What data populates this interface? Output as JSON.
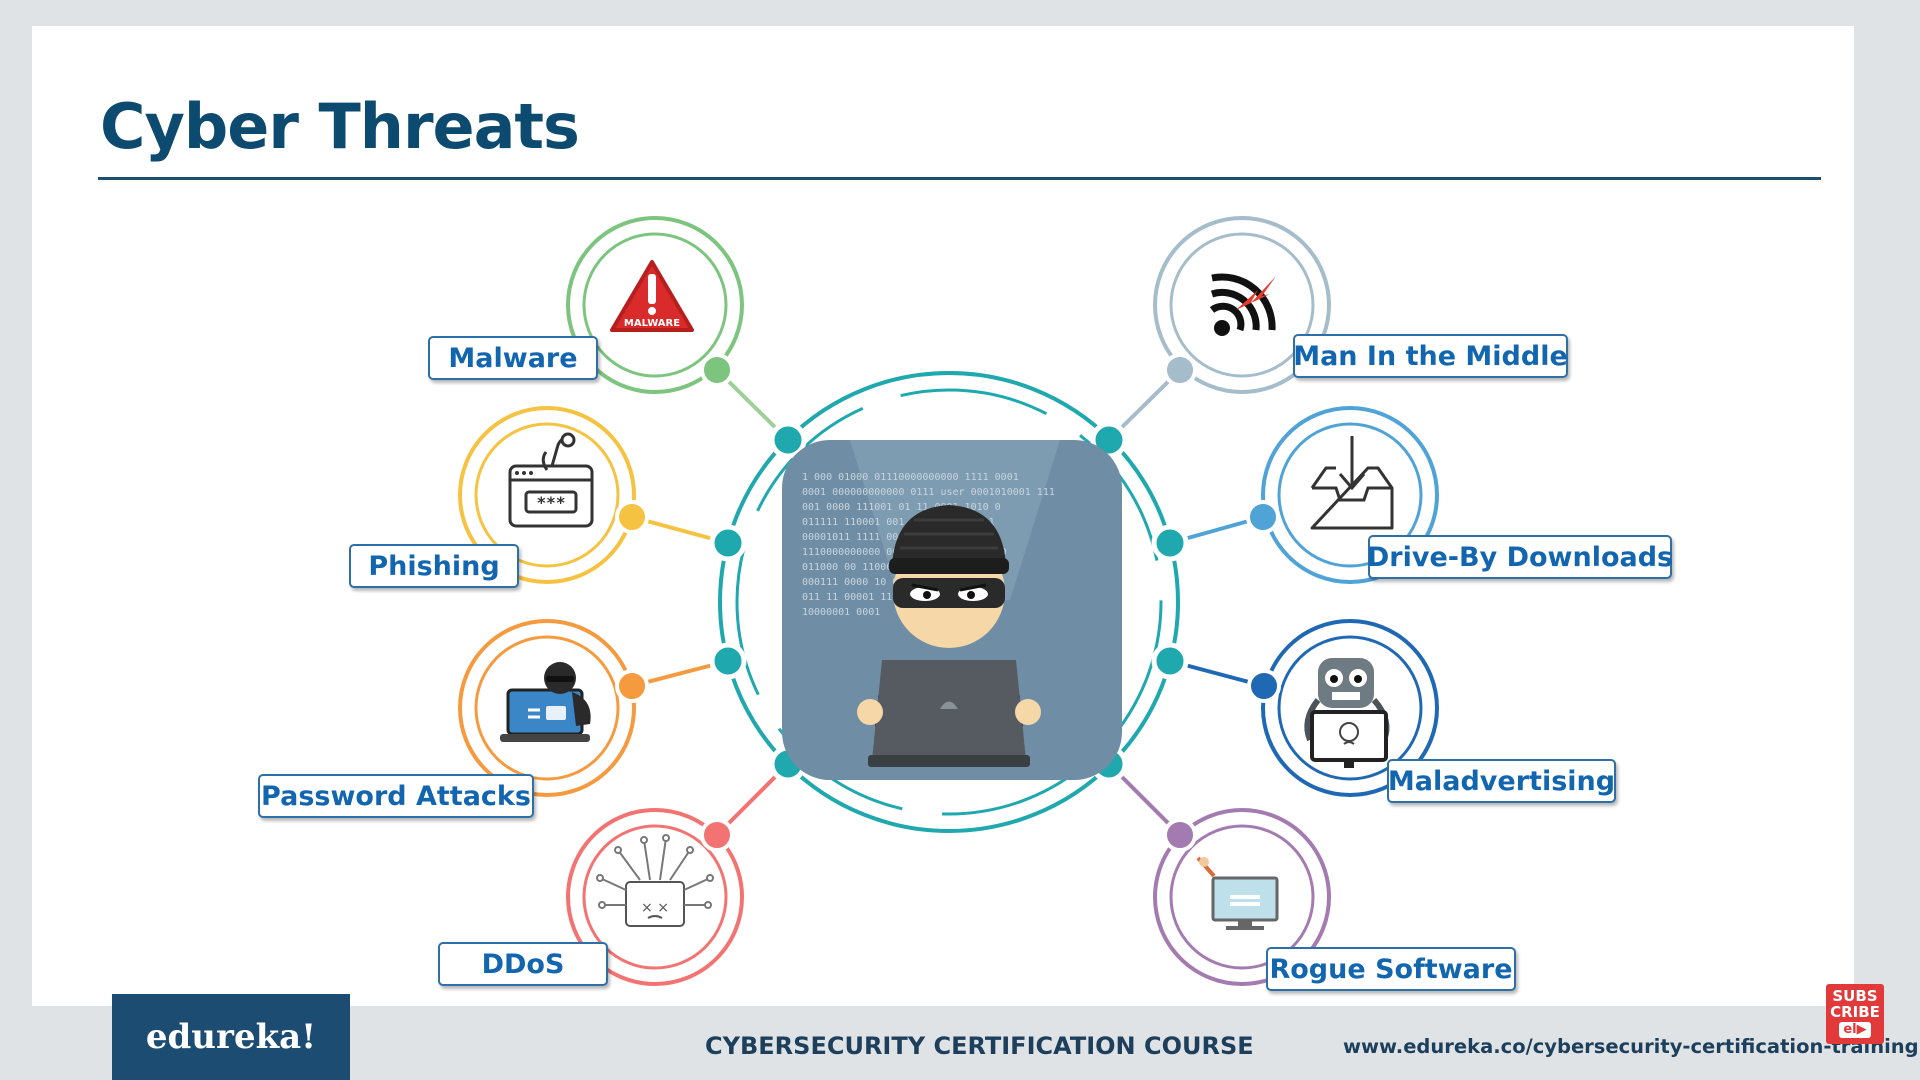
{
  "slide": {
    "title": "Cyber Threats"
  },
  "center": {
    "icon": "hacker-with-laptop-icon",
    "binary_lines": [
      "1 000 01000  01110000000000   1111 0001",
      "0001 000000000000 0111 user 0001010001  111",
      "001 0000 111001 01     11 0001 1010    0",
      "011111      110001     001 1110 0001 0011",
      "00001011  1111      00  00001 100",
      "1110000000000 00      001 11111 00000 0",
      "011000        00     110001 1110000",
      "000111   0000      10 00001 1111",
      "011 11        00001 1111 0000 1",
      "                    10000001    0001"
    ]
  },
  "threats": [
    {
      "label": "Malware",
      "icon": "malware-warning-icon",
      "color": "#7dc47f"
    },
    {
      "label": "Phishing",
      "icon": "phishing-hook-icon",
      "color": "#f5c242"
    },
    {
      "label": "Password Attacks",
      "icon": "password-attack-icon",
      "color": "#f59a3e"
    },
    {
      "label": "DDoS",
      "icon": "ddos-arrows-icon",
      "color": "#f37373"
    },
    {
      "label": "Man In the Middle",
      "icon": "wifi-interception-icon",
      "color": "#a5bccb"
    },
    {
      "label": "Drive-By Downloads",
      "icon": "download-tray-icon",
      "color": "#4fa3d6"
    },
    {
      "label": "Maladvertising",
      "icon": "malicious-ad-robot-icon",
      "color": "#1f68b4"
    },
    {
      "label": "Rogue Software",
      "icon": "rogue-monitor-icon",
      "color": "#a47bb0"
    }
  ],
  "colors": {
    "hub_teal": "#1fa8ad",
    "title": "#0d4a70",
    "label_border": "#2f6fa8",
    "label_text": "#1266b0"
  },
  "footer": {
    "logo": "edureka!",
    "course": "CYBERSECURITY CERTIFICATION COURSE",
    "url": "www.edureka.co/cybersecurity-certification-training",
    "subscribe_top": "SUBS",
    "subscribe_mid": "CRIBE",
    "subscribe_badge": "el▶"
  }
}
